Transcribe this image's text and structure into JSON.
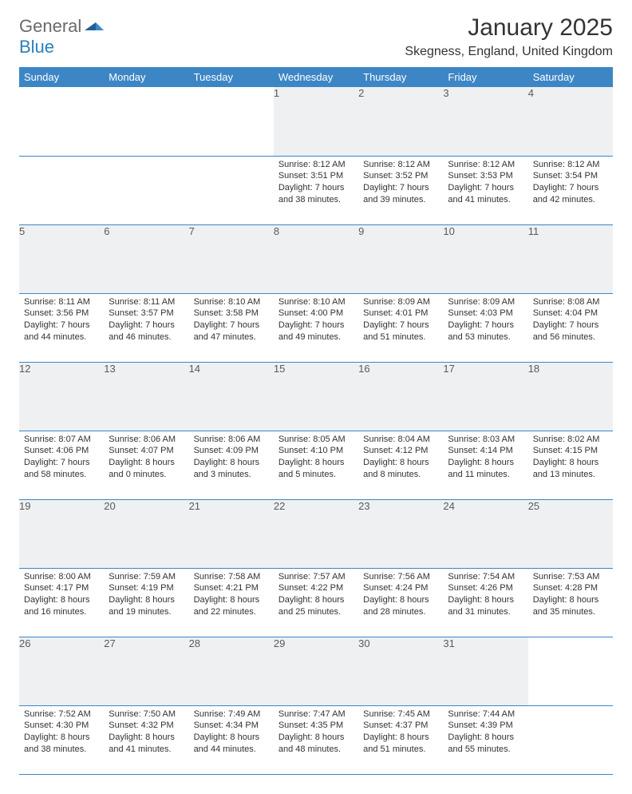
{
  "brand": {
    "general": "General",
    "blue": "Blue"
  },
  "title": "January 2025",
  "location": "Skegness, England, United Kingdom",
  "colors": {
    "header_bg": "#3d86c6",
    "header_text": "#ffffff",
    "daynum_bg": "#eef0f2",
    "daynum_text": "#5a5a5a",
    "rule": "#3d86c6",
    "body_text": "#333333",
    "logo_gray": "#6a6a6a",
    "logo_blue": "#2a7fbf"
  },
  "weekdays": [
    "Sunday",
    "Monday",
    "Tuesday",
    "Wednesday",
    "Thursday",
    "Friday",
    "Saturday"
  ],
  "weeks": [
    [
      null,
      null,
      null,
      {
        "n": "1",
        "sunrise": "Sunrise: 8:12 AM",
        "sunset": "Sunset: 3:51 PM",
        "d1": "Daylight: 7 hours",
        "d2": "and 38 minutes."
      },
      {
        "n": "2",
        "sunrise": "Sunrise: 8:12 AM",
        "sunset": "Sunset: 3:52 PM",
        "d1": "Daylight: 7 hours",
        "d2": "and 39 minutes."
      },
      {
        "n": "3",
        "sunrise": "Sunrise: 8:12 AM",
        "sunset": "Sunset: 3:53 PM",
        "d1": "Daylight: 7 hours",
        "d2": "and 41 minutes."
      },
      {
        "n": "4",
        "sunrise": "Sunrise: 8:12 AM",
        "sunset": "Sunset: 3:54 PM",
        "d1": "Daylight: 7 hours",
        "d2": "and 42 minutes."
      }
    ],
    [
      {
        "n": "5",
        "sunrise": "Sunrise: 8:11 AM",
        "sunset": "Sunset: 3:56 PM",
        "d1": "Daylight: 7 hours",
        "d2": "and 44 minutes."
      },
      {
        "n": "6",
        "sunrise": "Sunrise: 8:11 AM",
        "sunset": "Sunset: 3:57 PM",
        "d1": "Daylight: 7 hours",
        "d2": "and 46 minutes."
      },
      {
        "n": "7",
        "sunrise": "Sunrise: 8:10 AM",
        "sunset": "Sunset: 3:58 PM",
        "d1": "Daylight: 7 hours",
        "d2": "and 47 minutes."
      },
      {
        "n": "8",
        "sunrise": "Sunrise: 8:10 AM",
        "sunset": "Sunset: 4:00 PM",
        "d1": "Daylight: 7 hours",
        "d2": "and 49 minutes."
      },
      {
        "n": "9",
        "sunrise": "Sunrise: 8:09 AM",
        "sunset": "Sunset: 4:01 PM",
        "d1": "Daylight: 7 hours",
        "d2": "and 51 minutes."
      },
      {
        "n": "10",
        "sunrise": "Sunrise: 8:09 AM",
        "sunset": "Sunset: 4:03 PM",
        "d1": "Daylight: 7 hours",
        "d2": "and 53 minutes."
      },
      {
        "n": "11",
        "sunrise": "Sunrise: 8:08 AM",
        "sunset": "Sunset: 4:04 PM",
        "d1": "Daylight: 7 hours",
        "d2": "and 56 minutes."
      }
    ],
    [
      {
        "n": "12",
        "sunrise": "Sunrise: 8:07 AM",
        "sunset": "Sunset: 4:06 PM",
        "d1": "Daylight: 7 hours",
        "d2": "and 58 minutes."
      },
      {
        "n": "13",
        "sunrise": "Sunrise: 8:06 AM",
        "sunset": "Sunset: 4:07 PM",
        "d1": "Daylight: 8 hours",
        "d2": "and 0 minutes."
      },
      {
        "n": "14",
        "sunrise": "Sunrise: 8:06 AM",
        "sunset": "Sunset: 4:09 PM",
        "d1": "Daylight: 8 hours",
        "d2": "and 3 minutes."
      },
      {
        "n": "15",
        "sunrise": "Sunrise: 8:05 AM",
        "sunset": "Sunset: 4:10 PM",
        "d1": "Daylight: 8 hours",
        "d2": "and 5 minutes."
      },
      {
        "n": "16",
        "sunrise": "Sunrise: 8:04 AM",
        "sunset": "Sunset: 4:12 PM",
        "d1": "Daylight: 8 hours",
        "d2": "and 8 minutes."
      },
      {
        "n": "17",
        "sunrise": "Sunrise: 8:03 AM",
        "sunset": "Sunset: 4:14 PM",
        "d1": "Daylight: 8 hours",
        "d2": "and 11 minutes."
      },
      {
        "n": "18",
        "sunrise": "Sunrise: 8:02 AM",
        "sunset": "Sunset: 4:15 PM",
        "d1": "Daylight: 8 hours",
        "d2": "and 13 minutes."
      }
    ],
    [
      {
        "n": "19",
        "sunrise": "Sunrise: 8:00 AM",
        "sunset": "Sunset: 4:17 PM",
        "d1": "Daylight: 8 hours",
        "d2": "and 16 minutes."
      },
      {
        "n": "20",
        "sunrise": "Sunrise: 7:59 AM",
        "sunset": "Sunset: 4:19 PM",
        "d1": "Daylight: 8 hours",
        "d2": "and 19 minutes."
      },
      {
        "n": "21",
        "sunrise": "Sunrise: 7:58 AM",
        "sunset": "Sunset: 4:21 PM",
        "d1": "Daylight: 8 hours",
        "d2": "and 22 minutes."
      },
      {
        "n": "22",
        "sunrise": "Sunrise: 7:57 AM",
        "sunset": "Sunset: 4:22 PM",
        "d1": "Daylight: 8 hours",
        "d2": "and 25 minutes."
      },
      {
        "n": "23",
        "sunrise": "Sunrise: 7:56 AM",
        "sunset": "Sunset: 4:24 PM",
        "d1": "Daylight: 8 hours",
        "d2": "and 28 minutes."
      },
      {
        "n": "24",
        "sunrise": "Sunrise: 7:54 AM",
        "sunset": "Sunset: 4:26 PM",
        "d1": "Daylight: 8 hours",
        "d2": "and 31 minutes."
      },
      {
        "n": "25",
        "sunrise": "Sunrise: 7:53 AM",
        "sunset": "Sunset: 4:28 PM",
        "d1": "Daylight: 8 hours",
        "d2": "and 35 minutes."
      }
    ],
    [
      {
        "n": "26",
        "sunrise": "Sunrise: 7:52 AM",
        "sunset": "Sunset: 4:30 PM",
        "d1": "Daylight: 8 hours",
        "d2": "and 38 minutes."
      },
      {
        "n": "27",
        "sunrise": "Sunrise: 7:50 AM",
        "sunset": "Sunset: 4:32 PM",
        "d1": "Daylight: 8 hours",
        "d2": "and 41 minutes."
      },
      {
        "n": "28",
        "sunrise": "Sunrise: 7:49 AM",
        "sunset": "Sunset: 4:34 PM",
        "d1": "Daylight: 8 hours",
        "d2": "and 44 minutes."
      },
      {
        "n": "29",
        "sunrise": "Sunrise: 7:47 AM",
        "sunset": "Sunset: 4:35 PM",
        "d1": "Daylight: 8 hours",
        "d2": "and 48 minutes."
      },
      {
        "n": "30",
        "sunrise": "Sunrise: 7:45 AM",
        "sunset": "Sunset: 4:37 PM",
        "d1": "Daylight: 8 hours",
        "d2": "and 51 minutes."
      },
      {
        "n": "31",
        "sunrise": "Sunrise: 7:44 AM",
        "sunset": "Sunset: 4:39 PM",
        "d1": "Daylight: 8 hours",
        "d2": "and 55 minutes."
      },
      null
    ]
  ]
}
